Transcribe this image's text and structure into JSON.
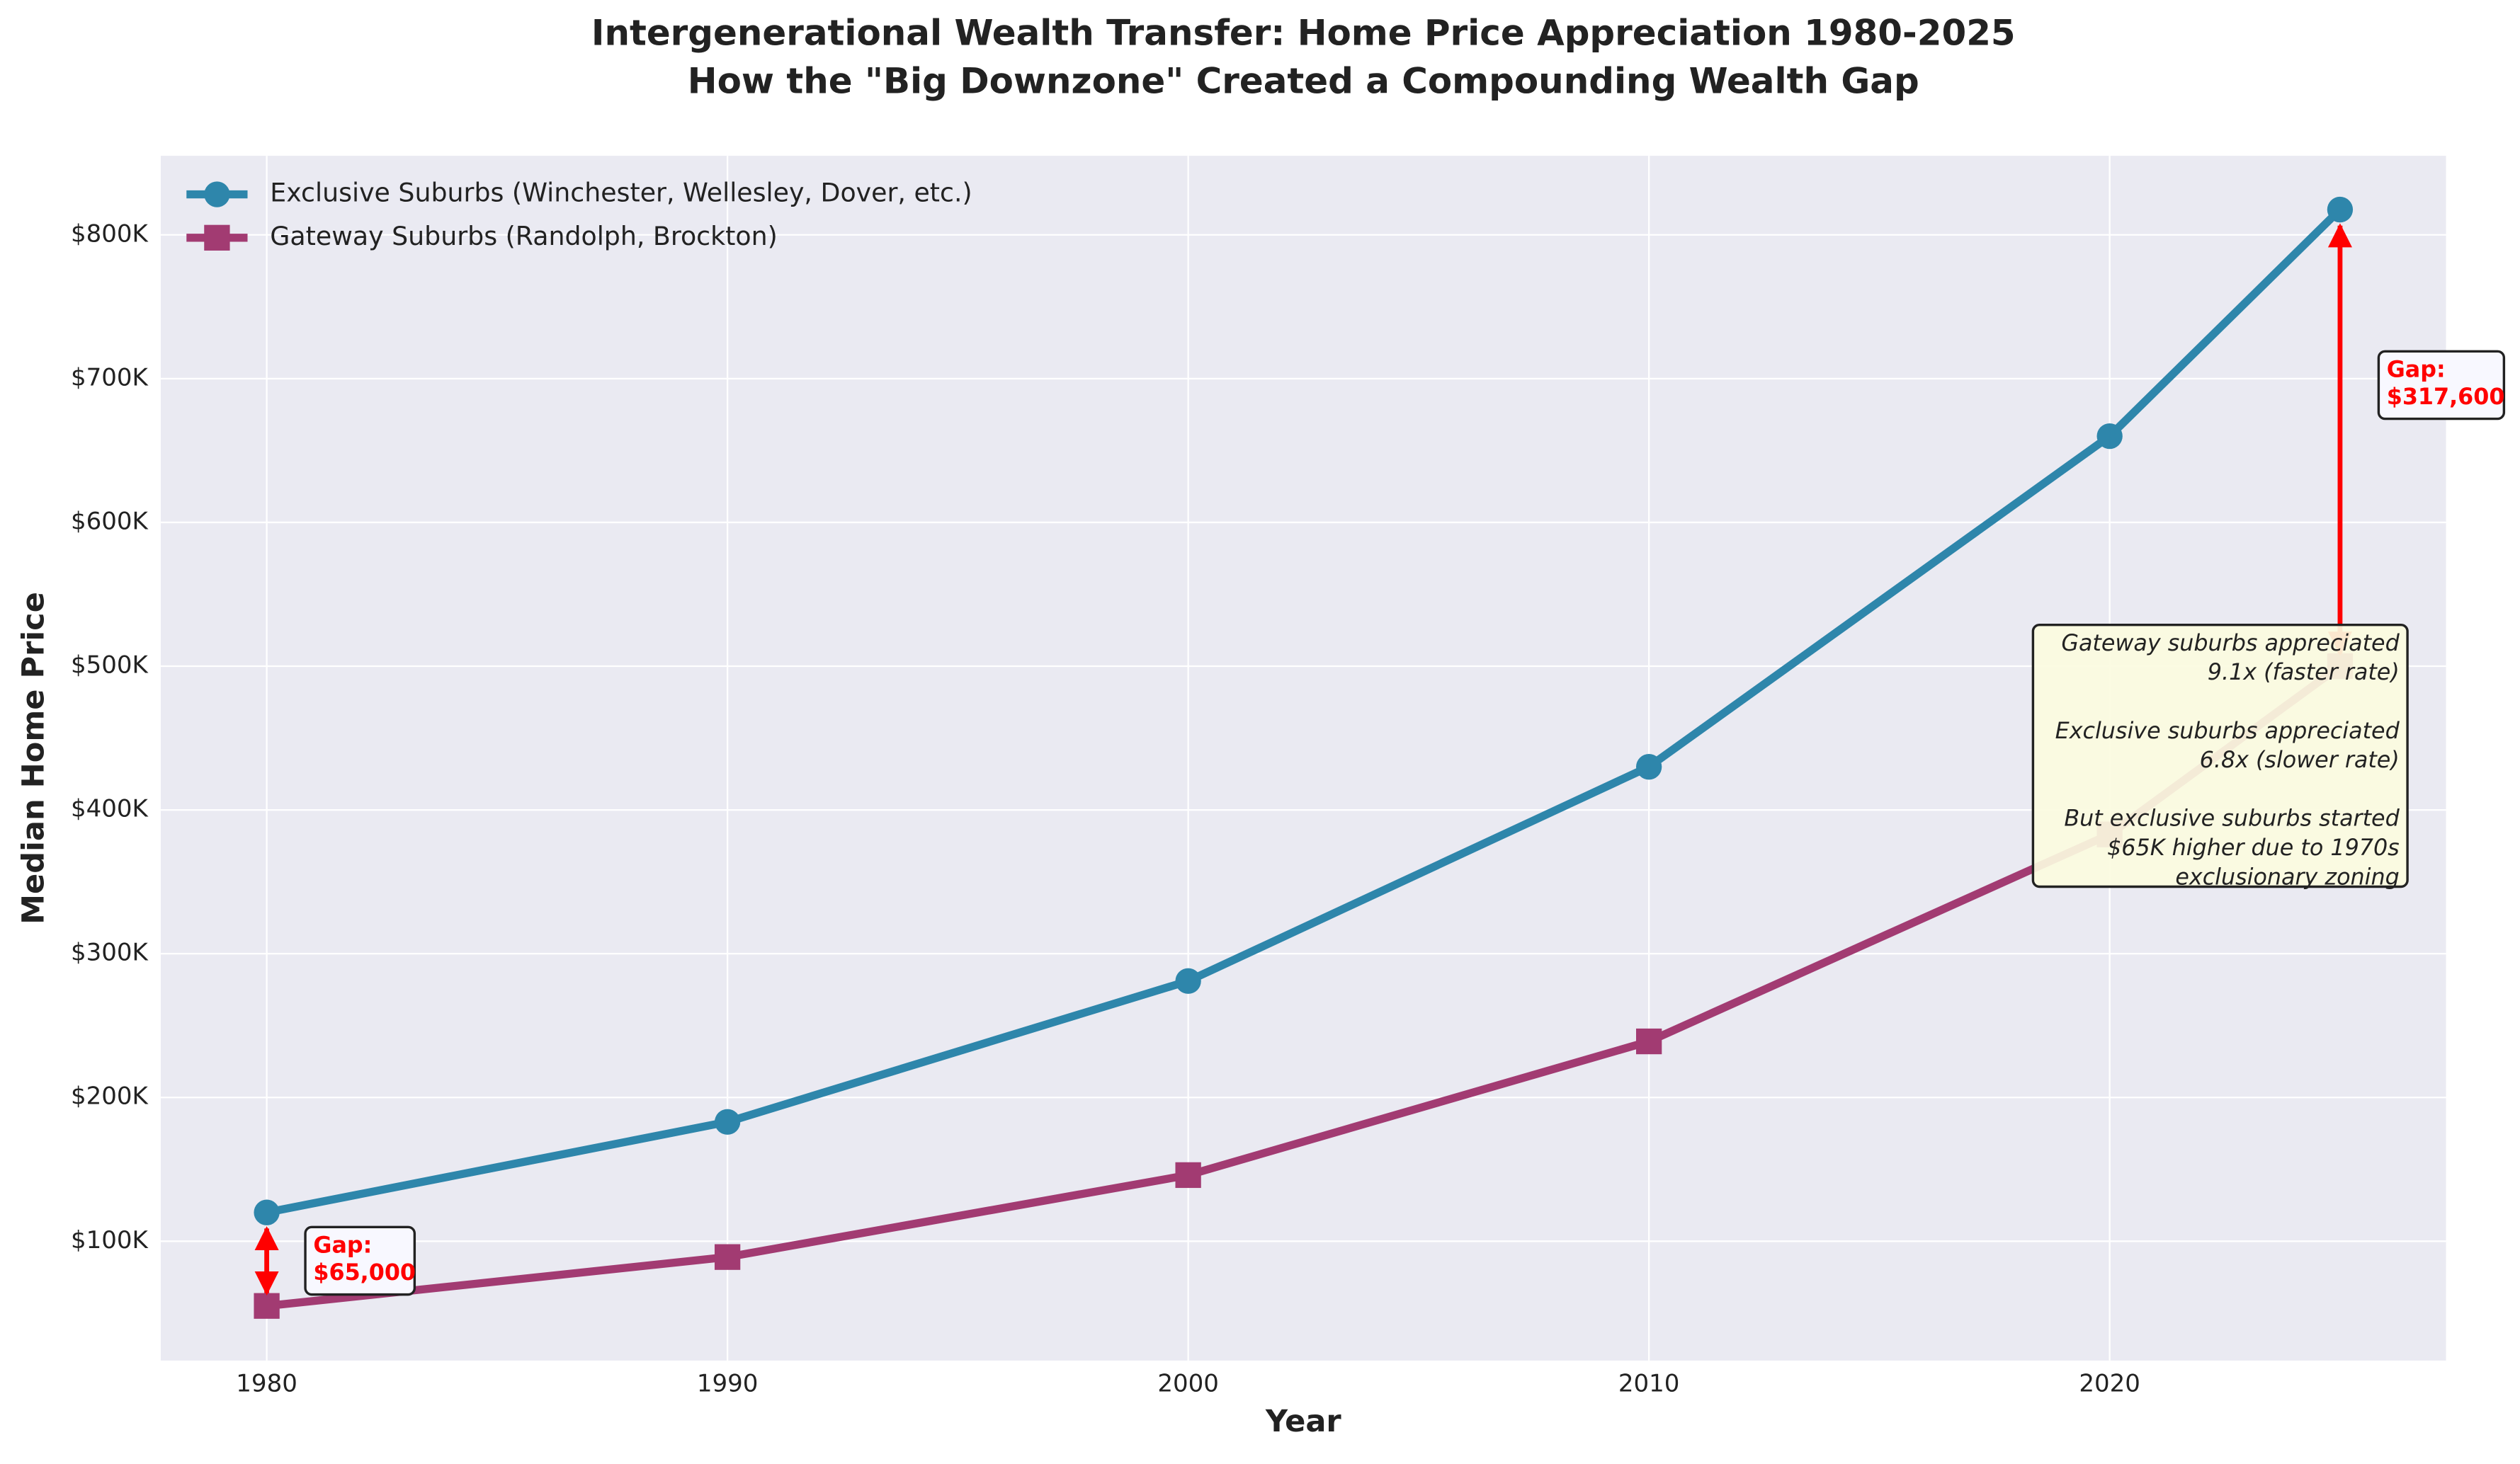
{
  "chart_data": {
    "type": "line",
    "title": "Intergenerational Wealth Transfer: Home Price Appreciation 1980-2025",
    "subtitle": "How the \"Big Downzone\" Created a Compounding Wealth Gap",
    "x_label": "Year",
    "y_label": "Median Home Price",
    "x": [
      1980,
      1990,
      2000,
      2010,
      2020,
      2025
    ],
    "series": [
      {
        "name": "Exclusive Suburbs (Winchester, Wellesley, Dover, etc.)",
        "color": "#2e86ab",
        "marker": "circle",
        "values": [
          120000,
          183000,
          281000,
          430000,
          660000,
          817600
        ]
      },
      {
        "name": "Gateway Suburbs (Randolph, Brockton)",
        "color": "#a23b72",
        "marker": "square",
        "values": [
          55000,
          89000,
          146000,
          239000,
          383000,
          500000
        ]
      }
    ],
    "xlim": [
      1977.7,
      2027.3
    ],
    "xticks": [
      1980,
      1990,
      2000,
      2010,
      2020
    ],
    "ylim": [
      17000,
      855000
    ],
    "yticks": [
      {
        "value": 100000,
        "label": "$100K"
      },
      {
        "value": 200000,
        "label": "$200K"
      },
      {
        "value": 300000,
        "label": "$300K"
      },
      {
        "value": 400000,
        "label": "$400K"
      },
      {
        "value": 500000,
        "label": "$500K"
      },
      {
        "value": 600000,
        "label": "$600K"
      },
      {
        "value": 700000,
        "label": "$700K"
      },
      {
        "value": 800000,
        "label": "$800K"
      }
    ],
    "grid": true,
    "legend": "upper-left",
    "annotations": [
      {
        "lines": [
          "Gap:",
          "$65,000"
        ],
        "color": "#ff0000"
      },
      {
        "lines": [
          "Gap:",
          "$317,600"
        ],
        "color": "#ff0000"
      }
    ],
    "info_box": [
      "Gateway suburbs appreciated",
      "9.1x (faster rate)",
      "",
      "Exclusive suburbs appreciated",
      "6.8x (slower rate)",
      "",
      "But exclusive suburbs started",
      "$65K higher due to 1970s",
      "exclusionary zoning"
    ]
  }
}
